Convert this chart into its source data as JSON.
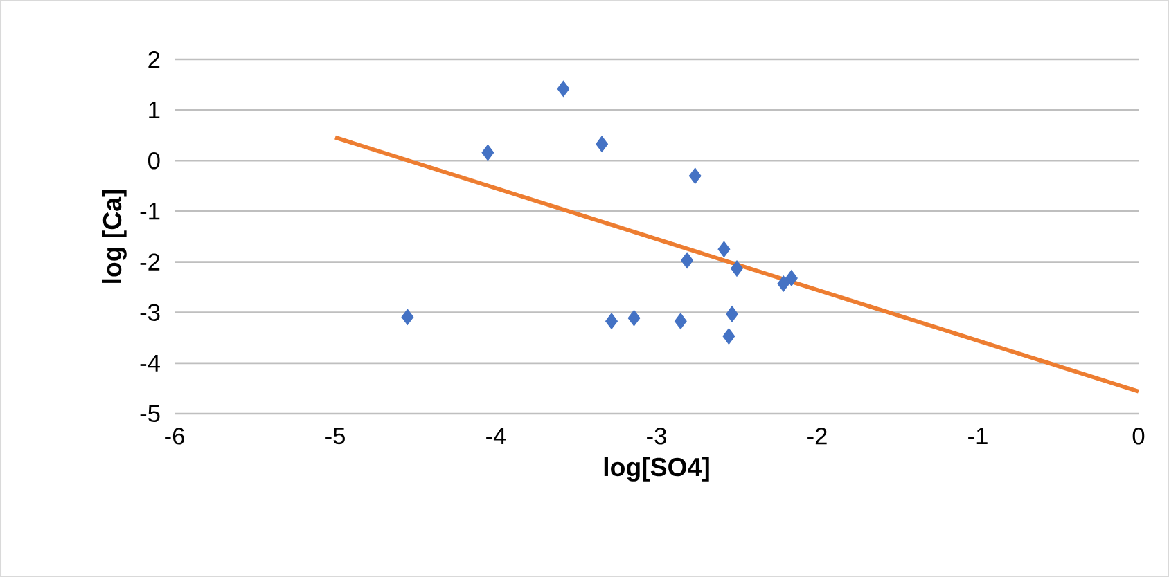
{
  "chart_data": {
    "type": "scatter",
    "xlabel": "log[SO4]",
    "ylabel": "log [Ca]",
    "xlim": [
      -6,
      0
    ],
    "xticks": [
      -6,
      -5,
      -4,
      -3,
      -2,
      -1,
      0
    ],
    "ylim": [
      -5,
      2
    ],
    "yticks": [
      -5,
      -4,
      -3,
      -2,
      -1,
      0,
      1,
      2
    ],
    "grid": "y",
    "series": [
      {
        "color": "#4472c4",
        "marker": "diamond",
        "x": [
          -4.55,
          -4.05,
          -3.58,
          -3.34,
          -3.28,
          -3.14,
          -2.76,
          -2.81,
          -2.85,
          -2.58,
          -2.5,
          -2.53,
          -2.55,
          -2.21,
          -2.16
        ],
        "values": [
          -3.09,
          0.16,
          1.42,
          0.33,
          -3.17,
          -3.11,
          -0.3,
          -1.97,
          -3.17,
          -1.75,
          -2.13,
          -3.03,
          -3.47,
          -2.43,
          -2.32
        ]
      },
      {
        "type": "line",
        "color": "#ed7d31",
        "marker": "none",
        "x": [
          -5,
          0
        ],
        "values": [
          0.46,
          -4.56
        ]
      }
    ]
  }
}
